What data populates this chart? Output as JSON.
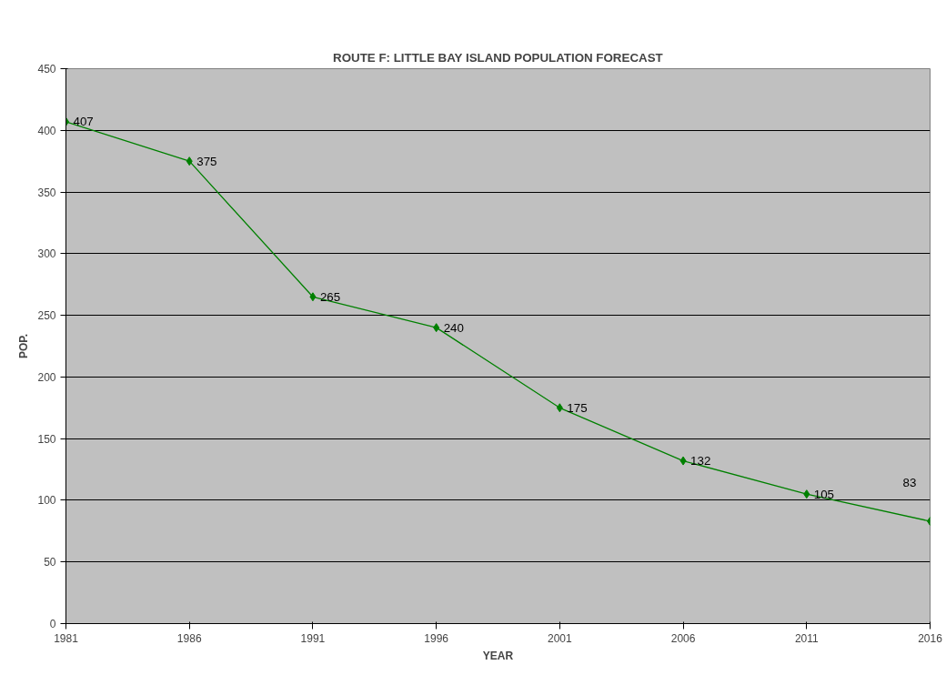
{
  "chart_data": {
    "type": "line",
    "title": "ROUTE F: LITTLE BAY ISLAND POPULATION FORECAST",
    "xlabel": "YEAR",
    "ylabel": "POP.",
    "x": [
      1981,
      1986,
      1991,
      1996,
      2001,
      2006,
      2011,
      2016
    ],
    "series": [
      {
        "color": "#008000",
        "values": [
          407,
          375,
          265,
          240,
          175,
          132,
          105,
          83
        ]
      }
    ],
    "xlim": [
      1981,
      2016
    ],
    "xticks": [
      1981,
      1986,
      1991,
      1996,
      2001,
      2006,
      2011,
      2016
    ],
    "ylim": [
      0,
      450
    ],
    "yticks": [
      0,
      50,
      100,
      150,
      200,
      250,
      300,
      350,
      400,
      450
    ],
    "grid": "y",
    "marker": "diamond",
    "line_style": "solid",
    "data_labels": true
  }
}
